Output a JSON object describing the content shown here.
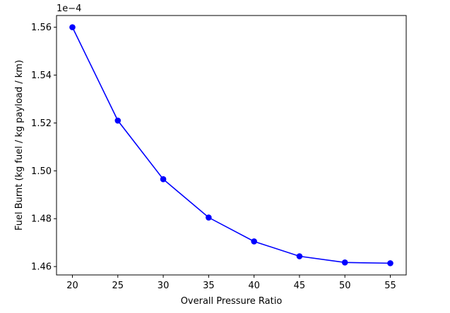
{
  "chart_data": {
    "type": "line",
    "title": "",
    "xlabel": "Overall Pressure Ratio",
    "ylabel": "Fuel Burnt (kg fuel / kg payload / km)",
    "y_offset_label": "1e−4",
    "x": [
      20,
      25,
      30,
      35,
      40,
      45,
      50,
      55
    ],
    "series": [
      {
        "values": [
          1.56,
          1.521,
          1.4965,
          1.4805,
          1.4705,
          1.4643,
          1.4617,
          1.4614
        ]
      }
    ],
    "x_ticks": [
      20,
      25,
      30,
      35,
      40,
      45,
      50,
      55
    ],
    "x_tick_labels": [
      "20",
      "25",
      "30",
      "35",
      "40",
      "45",
      "50",
      "55"
    ],
    "y_ticks": [
      1.46,
      1.48,
      1.5,
      1.52,
      1.54,
      1.56
    ],
    "y_tick_labels": [
      "1.46",
      "1.48",
      "1.50",
      "1.52",
      "1.54",
      "1.56"
    ],
    "xlim": [
      18.25,
      56.75
    ],
    "ylim": [
      1.4565,
      1.5649
    ],
    "grid": false,
    "legend": "none",
    "color": "#0000ff",
    "marker": "circle"
  }
}
